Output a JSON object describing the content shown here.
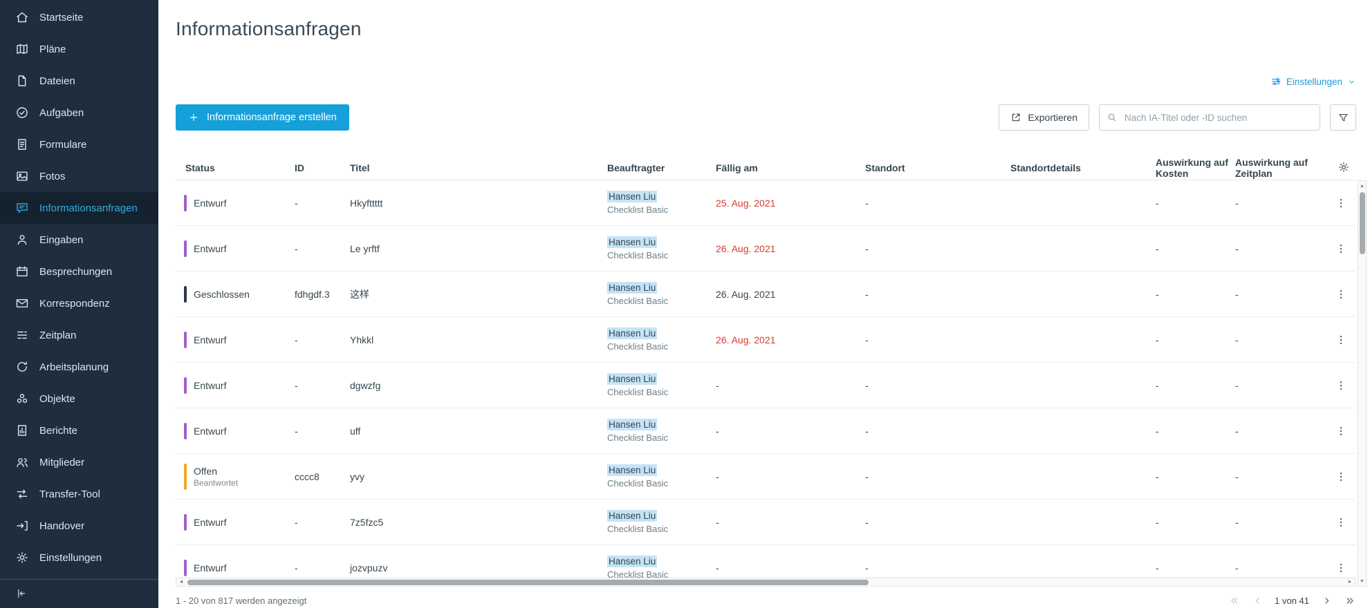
{
  "sidebar": {
    "items": [
      {
        "label": "Startseite",
        "icon": "home-icon",
        "active": false
      },
      {
        "label": "Pläne",
        "icon": "plans-icon",
        "active": false
      },
      {
        "label": "Dateien",
        "icon": "files-icon",
        "active": false
      },
      {
        "label": "Aufgaben",
        "icon": "tasks-icon",
        "active": false
      },
      {
        "label": "Formulare",
        "icon": "forms-icon",
        "active": false
      },
      {
        "label": "Fotos",
        "icon": "photos-icon",
        "active": false
      },
      {
        "label": "Informationsanfragen",
        "icon": "info-request-icon",
        "active": true
      },
      {
        "label": "Eingaben",
        "icon": "submissions-icon",
        "active": false
      },
      {
        "label": "Besprechungen",
        "icon": "meetings-icon",
        "active": false
      },
      {
        "label": "Korrespondenz",
        "icon": "envelope-icon",
        "active": false
      },
      {
        "label": "Zeitplan",
        "icon": "schedule-icon",
        "active": false
      },
      {
        "label": "Arbeitsplanung",
        "icon": "work-planning-icon",
        "active": false
      },
      {
        "label": "Objekte",
        "icon": "objects-icon",
        "active": false
      },
      {
        "label": "Berichte",
        "icon": "reports-icon",
        "active": false
      },
      {
        "label": "Mitglieder",
        "icon": "members-icon",
        "active": false
      },
      {
        "label": "Transfer-Tool",
        "icon": "transfer-icon",
        "active": false
      },
      {
        "label": "Handover",
        "icon": "handover-icon",
        "active": false
      },
      {
        "label": "Einstellungen",
        "icon": "gear-icon",
        "active": false
      }
    ]
  },
  "page": {
    "title": "Informationsanfragen"
  },
  "view_settings": {
    "label": "Einstellungen"
  },
  "toolbar": {
    "create_label": "Informationsanfrage erstellen",
    "export_label": "Exportieren",
    "search_placeholder": "Nach IA-Titel oder -ID suchen"
  },
  "icons": {
    "view_settings": "sliders-icon",
    "view_settings_chevron": "chevron-down-icon",
    "create": "plus-icon",
    "export": "export-icon",
    "search": "search-icon",
    "filter": "funnel-icon",
    "column_settings": "gear-icon",
    "row_menu": "kebab-icon",
    "pager_first": "first-page-icon",
    "pager_prev": "prev-page-icon",
    "pager_next": "next-page-icon",
    "pager_last": "last-page-icon",
    "sidebar_collapse": "collapse-icon"
  },
  "table": {
    "columns": [
      {
        "key": "status",
        "label": "Status"
      },
      {
        "key": "id",
        "label": "ID"
      },
      {
        "key": "titel",
        "label": "Titel"
      },
      {
        "key": "beauftragter",
        "label": "Beauftragter"
      },
      {
        "key": "faellig",
        "label": "Fällig am"
      },
      {
        "key": "standort",
        "label": "Standort"
      },
      {
        "key": "standortdetails",
        "label": "Standortdetails"
      },
      {
        "key": "kosten",
        "label": "Auswirkung auf Kosten"
      },
      {
        "key": "zeitplan",
        "label": "Auswirkung auf Zeitplan"
      }
    ],
    "rows": [
      {
        "status": "Entwurf",
        "status_sub": "",
        "status_color": "#a15fc9",
        "id": "-",
        "titel": "Hkyfttttt",
        "beauftragter": "Hansen Liu",
        "beauftragter_sub": "Checklist Basic",
        "faellig": "25. Aug. 2021",
        "overdue": true,
        "standort": "-",
        "standortdetails": "",
        "kosten": "-",
        "zeitplan": "-"
      },
      {
        "status": "Entwurf",
        "status_sub": "",
        "status_color": "#a15fc9",
        "id": "-",
        "titel": "Le yrftf",
        "beauftragter": "Hansen Liu",
        "beauftragter_sub": "Checklist Basic",
        "faellig": "26. Aug. 2021",
        "overdue": true,
        "standort": "-",
        "standortdetails": "",
        "kosten": "-",
        "zeitplan": "-"
      },
      {
        "status": "Geschlossen",
        "status_sub": "",
        "status_color": "#2b3745",
        "id": "fdhgdf.3",
        "titel": "这样",
        "beauftragter": "Hansen Liu",
        "beauftragter_sub": "Checklist Basic",
        "faellig": "26. Aug. 2021",
        "overdue": false,
        "standort": "-",
        "standortdetails": "",
        "kosten": "-",
        "zeitplan": "-"
      },
      {
        "status": "Entwurf",
        "status_sub": "",
        "status_color": "#a15fc9",
        "id": "-",
        "titel": "Yhkkl",
        "beauftragter": "Hansen Liu",
        "beauftragter_sub": "Checklist Basic",
        "faellig": "26. Aug. 2021",
        "overdue": true,
        "standort": "-",
        "standortdetails": "",
        "kosten": "-",
        "zeitplan": "-"
      },
      {
        "status": "Entwurf",
        "status_sub": "",
        "status_color": "#a15fc9",
        "id": "-",
        "titel": "dgwzfg",
        "beauftragter": "Hansen Liu",
        "beauftragter_sub": "Checklist Basic",
        "faellig": "-",
        "overdue": false,
        "standort": "-",
        "standortdetails": "",
        "kosten": "-",
        "zeitplan": "-"
      },
      {
        "status": "Entwurf",
        "status_sub": "",
        "status_color": "#a15fc9",
        "id": "-",
        "titel": "uff",
        "beauftragter": "Hansen Liu",
        "beauftragter_sub": "Checklist Basic",
        "faellig": "-",
        "overdue": false,
        "standort": "-",
        "standortdetails": "",
        "kosten": "-",
        "zeitplan": "-"
      },
      {
        "status": "Offen",
        "status_sub": "Beantwortet",
        "status_color": "#f6a623",
        "id": "cccc8",
        "titel": "yvy",
        "beauftragter": "Hansen Liu",
        "beauftragter_sub": "Checklist Basic",
        "faellig": "-",
        "overdue": false,
        "standort": "-",
        "standortdetails": "",
        "kosten": "-",
        "zeitplan": "-"
      },
      {
        "status": "Entwurf",
        "status_sub": "",
        "status_color": "#a15fc9",
        "id": "-",
        "titel": "7z5fzc5",
        "beauftragter": "Hansen Liu",
        "beauftragter_sub": "Checklist Basic",
        "faellig": "-",
        "overdue": false,
        "standort": "-",
        "standortdetails": "",
        "kosten": "-",
        "zeitplan": "-"
      },
      {
        "status": "Entwurf",
        "status_sub": "",
        "status_color": "#a15fc9",
        "id": "-",
        "titel": "jozvpuzv",
        "beauftragter": "Hansen Liu",
        "beauftragter_sub": "Checklist Basic",
        "faellig": "-",
        "overdue": false,
        "standort": "-",
        "standortdetails": "",
        "kosten": "-",
        "zeitplan": "-"
      }
    ]
  },
  "footer": {
    "range_text": "1 - 20 von 817 werden angezeigt",
    "page_indicator": "1 von 41"
  },
  "colors": {
    "sidebar_bg": "#1e2e3e",
    "sidebar_active": "#35ace2",
    "primary_button": "#16a0da",
    "overdue_date": "#d93a2f",
    "assignee_highlight": "#c5e3f6",
    "status_entwurf": "#a15fc9",
    "status_geschlossen": "#2b3745",
    "status_offen": "#f6a623"
  }
}
